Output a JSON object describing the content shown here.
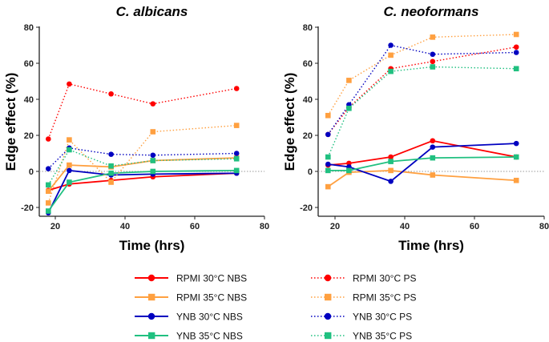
{
  "chart_data": [
    {
      "type": "line",
      "title": "C. albicans",
      "xlabel": "Time (hrs)",
      "ylabel": "Edge effect (%)",
      "xlim": [
        15,
        80
      ],
      "ylim": [
        -22,
        80
      ],
      "xticks": [
        "20",
        "40",
        "60",
        "80"
      ],
      "yticks": [
        "-20",
        "0",
        "20",
        "40",
        "60",
        "80"
      ],
      "x": [
        18,
        24,
        36,
        48,
        72
      ],
      "series": [
        {
          "name": "RPMI 30°C NBS",
          "values": [
            -10.5,
            -7,
            -5,
            -3,
            -1
          ]
        },
        {
          "name": "RPMI 35°C NBS",
          "values": [
            -11,
            3.5,
            2.5,
            6,
            7.5
          ]
        },
        {
          "name": "YNB 30°C NBS",
          "values": [
            -23,
            0.5,
            -2,
            -1.5,
            -1
          ]
        },
        {
          "name": "YNB 35°C NBS",
          "values": [
            -22,
            -6,
            -1,
            0,
            0.5
          ]
        },
        {
          "name": "RPMI 30°C PS",
          "values": [
            18,
            48.5,
            43,
            37.5,
            46
          ]
        },
        {
          "name": "RPMI 35°C PS",
          "values": [
            -17.5,
            17.5,
            -6,
            22,
            25.5
          ]
        },
        {
          "name": "YNB 30°C PS",
          "values": [
            1.5,
            13,
            9.5,
            9,
            10
          ]
        },
        {
          "name": "YNB 35°C PS",
          "values": [
            -7.5,
            12,
            3,
            6,
            7
          ]
        }
      ]
    },
    {
      "type": "line",
      "title": "C. neoformans",
      "xlabel": "Time (hrs)",
      "ylabel": "Edge effect (%)",
      "xlim": [
        15,
        80
      ],
      "ylim": [
        -22,
        80
      ],
      "xticks": [
        "20",
        "40",
        "60",
        "80"
      ],
      "yticks": [
        "-20",
        "0",
        "20",
        "40",
        "60",
        "80"
      ],
      "x": [
        18,
        24,
        36,
        48,
        72
      ],
      "series": [
        {
          "name": "RPMI 30°C NBS",
          "values": [
            3.5,
            4.5,
            8,
            17,
            8
          ]
        },
        {
          "name": "RPMI 35°C NBS",
          "values": [
            -8.5,
            -0.5,
            0.5,
            -2,
            -5
          ]
        },
        {
          "name": "YNB 30°C NBS",
          "values": [
            4,
            2.5,
            -5.5,
            13.5,
            15.5
          ]
        },
        {
          "name": "YNB 35°C NBS",
          "values": [
            0.5,
            0.5,
            5.5,
            7.5,
            8
          ]
        },
        {
          "name": "RPMI 30°C PS",
          "values": [
            20.5,
            35.5,
            57,
            61,
            69
          ]
        },
        {
          "name": "RPMI 35°C PS",
          "values": [
            31,
            50.5,
            64.5,
            74.5,
            76
          ]
        },
        {
          "name": "YNB 30°C PS",
          "values": [
            20.5,
            37,
            70,
            65,
            66
          ]
        },
        {
          "name": "YNB 35°C PS",
          "values": [
            8,
            35,
            55.5,
            58,
            57
          ]
        }
      ]
    }
  ],
  "series_style": [
    {
      "color": "#ff0000",
      "marker": "circle",
      "dash": false
    },
    {
      "color": "#ffa040",
      "marker": "square",
      "dash": false
    },
    {
      "color": "#0000c0",
      "marker": "circle",
      "dash": false
    },
    {
      "color": "#20c080",
      "marker": "square",
      "dash": false
    },
    {
      "color": "#ff0000",
      "marker": "circle",
      "dash": true
    },
    {
      "color": "#ffa040",
      "marker": "square",
      "dash": true
    },
    {
      "color": "#0000c0",
      "marker": "circle",
      "dash": true
    },
    {
      "color": "#20c080",
      "marker": "square",
      "dash": true
    }
  ]
}
